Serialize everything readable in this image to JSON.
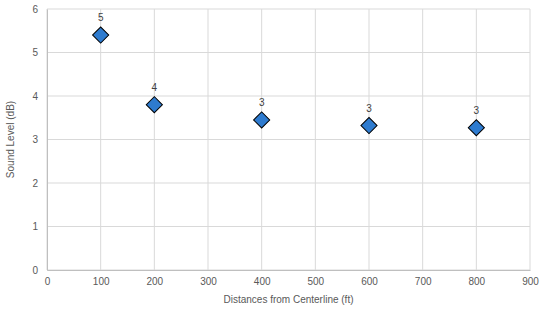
{
  "chart_data": {
    "type": "scatter",
    "x_label": "Distances from Centerline (ft)",
    "y_label": "Sound Level (dB)",
    "x": [
      100,
      200,
      400,
      600,
      800
    ],
    "values": [
      5.4,
      3.8,
      3.45,
      3.32,
      3.27
    ],
    "value_labels": [
      "5",
      "4",
      "3",
      "3",
      "3"
    ],
    "data_labels": true,
    "color": "#2e7bcf",
    "marker": "diamond",
    "xlim": [
      0,
      900
    ],
    "xticks": [
      0,
      100,
      200,
      300,
      400,
      500,
      600,
      700,
      800,
      900
    ],
    "ylim": [
      0,
      6
    ],
    "yticks": [
      0,
      1,
      2,
      3,
      4,
      5,
      6
    ],
    "grid": true
  }
}
